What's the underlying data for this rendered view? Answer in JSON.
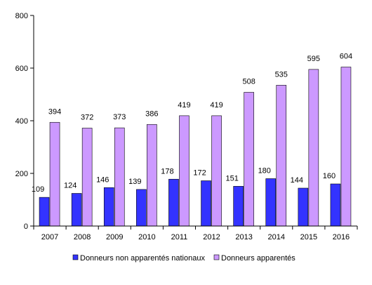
{
  "chart_data": {
    "type": "bar",
    "categories": [
      "2007",
      "2008",
      "2009",
      "2010",
      "2011",
      "2012",
      "2013",
      "2014",
      "2015",
      "2016"
    ],
    "series": [
      {
        "name": "Donneurs non apparentés nationaux",
        "values": [
          109,
          124,
          146,
          139,
          178,
          172,
          151,
          180,
          144,
          160
        ],
        "color": "#3333ff"
      },
      {
        "name": "Donneurs apparentés",
        "values": [
          394,
          372,
          373,
          386,
          419,
          419,
          508,
          535,
          595,
          604
        ],
        "color": "#cc99ff"
      }
    ],
    "y_ticks": [
      "0",
      "200",
      "400",
      "600",
      "800"
    ],
    "ylim": [
      0,
      800
    ],
    "grid": false,
    "legend_position": "bottom"
  }
}
